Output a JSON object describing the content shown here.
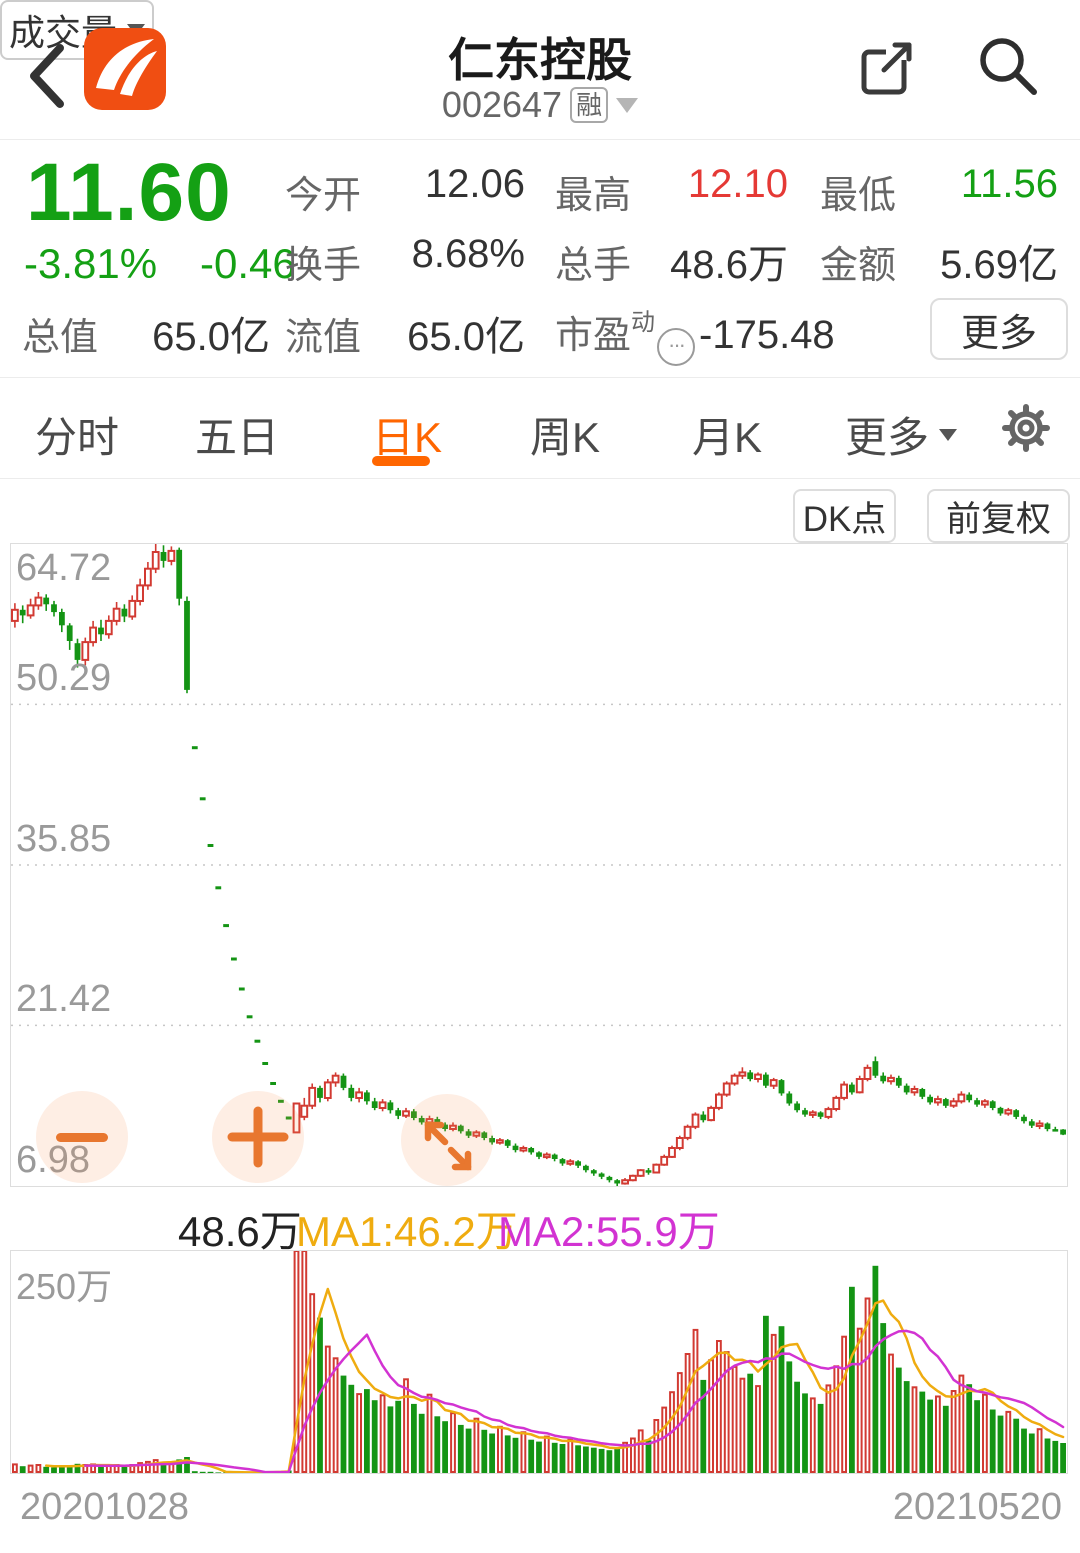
{
  "header": {
    "title": "仁东控股",
    "code": "002647",
    "margin_badge": "融"
  },
  "quote": {
    "price": "11.60",
    "change_pct": "-3.81%",
    "change_amt": "-0.46",
    "open_label": "今开",
    "open": "12.06",
    "high_label": "最高",
    "high": "12.10",
    "low_label": "最低",
    "low": "11.56",
    "turnover_label": "换手",
    "turnover": "8.68%",
    "volume_label": "总手",
    "volume": "48.6万",
    "amount_label": "金额",
    "amount": "5.69亿",
    "mktcap_label": "总值",
    "mktcap": "65.0亿",
    "float_label": "流值",
    "float_cap": "65.0亿",
    "pe_label": "市盈",
    "pe_sup": "动",
    "pe_value": "-175.48",
    "more_label": "更多"
  },
  "tabs": {
    "items": [
      "分时",
      "五日",
      "日K",
      "周K",
      "月K"
    ],
    "active": "日K",
    "more_label": "更多"
  },
  "chart_toolbar": {
    "dk_label": "DK点",
    "adjust_label": "前复权"
  },
  "volume_header": {
    "indicator_label": "成交量",
    "current": "48.6万",
    "ma1_label": "MA1:46.2万",
    "ma2_label": "MA2:55.9万"
  },
  "x_axis": {
    "start": "20201028",
    "end": "20210520"
  },
  "chart_data": {
    "type": "candlestick_with_volume",
    "symbol": "002647 仁东控股",
    "period": "日K",
    "y_axis_labels": [
      64.72,
      50.29,
      35.85,
      21.42,
      6.98
    ],
    "ylim": [
      6.98,
      64.72
    ],
    "volume_label": "250万",
    "volume_unit": "万",
    "volume_ylim_wan": [
      0,
      360
    ],
    "volume_ma_windows": [
      5,
      10
    ],
    "colors": {
      "up": "#d23a32",
      "down": "#149414",
      "ma1": "#efac10",
      "ma2": "#d233d2"
    },
    "x_range": [
      "20201028",
      "20210520"
    ],
    "candles_ohlcv": [
      [
        57.8,
        59.4,
        57.2,
        58.8,
        14
      ],
      [
        58.8,
        59.2,
        57.6,
        58.3,
        11
      ],
      [
        58.3,
        59.8,
        58.0,
        59.2,
        12
      ],
      [
        59.2,
        60.4,
        58.8,
        59.9,
        13
      ],
      [
        59.9,
        60.2,
        58.7,
        59.3,
        10
      ],
      [
        59.3,
        59.6,
        58.2,
        58.6,
        9
      ],
      [
        58.6,
        58.9,
        56.8,
        57.4,
        11
      ],
      [
        57.4,
        57.6,
        55.2,
        56.0,
        12
      ],
      [
        55.8,
        56.2,
        53.6,
        54.3,
        15
      ],
      [
        54.3,
        56.3,
        53.8,
        55.9,
        13
      ],
      [
        55.9,
        57.8,
        55.5,
        57.2,
        14
      ],
      [
        57.2,
        57.9,
        56.0,
        56.6,
        10
      ],
      [
        56.6,
        58.3,
        56.2,
        57.8,
        12
      ],
      [
        57.8,
        59.5,
        57.4,
        58.9,
        13
      ],
      [
        58.9,
        59.3,
        57.7,
        58.2,
        10
      ],
      [
        58.2,
        60.1,
        57.9,
        59.6,
        13
      ],
      [
        59.6,
        61.6,
        59.2,
        61.0,
        16
      ],
      [
        61.0,
        63.1,
        60.6,
        62.5,
        18
      ],
      [
        62.5,
        64.72,
        62.1,
        64.0,
        21
      ],
      [
        64.0,
        64.6,
        62.6,
        63.2,
        17
      ],
      [
        63.2,
        64.5,
        62.8,
        64.1,
        16
      ],
      [
        64.2,
        64.4,
        59.2,
        59.8,
        22
      ],
      [
        59.6,
        60.0,
        51.3,
        51.6,
        26
      ],
      [
        46.4,
        46.4,
        46.4,
        46.4,
        3
      ],
      [
        41.8,
        41.8,
        41.8,
        41.8,
        2
      ],
      [
        37.6,
        37.6,
        37.6,
        37.6,
        2
      ],
      [
        33.8,
        33.8,
        33.8,
        33.8,
        1
      ],
      [
        30.4,
        30.4,
        30.4,
        30.4,
        1
      ],
      [
        27.4,
        27.4,
        27.4,
        27.4,
        1
      ],
      [
        24.7,
        24.7,
        24.7,
        24.7,
        1
      ],
      [
        22.2,
        22.2,
        22.2,
        22.2,
        1
      ],
      [
        20.0,
        20.0,
        20.0,
        20.0,
        1
      ],
      [
        18.0,
        18.0,
        18.0,
        18.0,
        2
      ],
      [
        16.2,
        16.2,
        16.2,
        16.2,
        2
      ],
      [
        14.6,
        14.6,
        14.6,
        14.6,
        3
      ],
      [
        13.1,
        13.1,
        13.1,
        13.1,
        4
      ],
      [
        11.8,
        14.4,
        11.8,
        14.4,
        380
      ],
      [
        13.2,
        14.9,
        12.9,
        14.2,
        365
      ],
      [
        14.2,
        16.2,
        13.9,
        15.8,
        290
      ],
      [
        15.8,
        16.0,
        14.5,
        14.9,
        252
      ],
      [
        14.9,
        16.6,
        14.6,
        16.3,
        205
      ],
      [
        16.3,
        17.2,
        15.9,
        16.9,
        186
      ],
      [
        16.9,
        17.1,
        15.6,
        15.8,
        158
      ],
      [
        15.8,
        16.1,
        14.6,
        14.9,
        143
      ],
      [
        14.9,
        15.8,
        14.5,
        15.4,
        128
      ],
      [
        15.4,
        15.6,
        14.3,
        14.6,
        136
      ],
      [
        14.6,
        14.9,
        13.8,
        14.0,
        118
      ],
      [
        14.0,
        14.8,
        13.7,
        14.5,
        126
      ],
      [
        14.5,
        14.7,
        13.5,
        13.8,
        108
      ],
      [
        13.8,
        14.0,
        13.0,
        13.3,
        117
      ],
      [
        13.3,
        14.0,
        13.1,
        13.7,
        152
      ],
      [
        13.7,
        13.9,
        12.9,
        13.1,
        112
      ],
      [
        13.1,
        13.3,
        12.5,
        12.7,
        96
      ],
      [
        12.7,
        13.3,
        12.5,
        13.0,
        127
      ],
      [
        13.0,
        13.2,
        12.3,
        12.5,
        92
      ],
      [
        12.5,
        12.7,
        11.9,
        12.1,
        84
      ],
      [
        12.1,
        12.7,
        11.9,
        12.4,
        97
      ],
      [
        12.4,
        12.5,
        11.7,
        11.9,
        78
      ],
      [
        11.9,
        12.1,
        11.3,
        11.5,
        72
      ],
      [
        11.5,
        12.0,
        11.3,
        11.8,
        88
      ],
      [
        11.8,
        11.9,
        11.1,
        11.3,
        70
      ],
      [
        11.3,
        11.5,
        10.7,
        10.9,
        64
      ],
      [
        10.9,
        11.3,
        10.7,
        11.1,
        75
      ],
      [
        11.1,
        11.2,
        10.4,
        10.6,
        61
      ],
      [
        10.6,
        10.8,
        10.0,
        10.2,
        57
      ],
      [
        10.2,
        10.6,
        10.0,
        10.4,
        66
      ],
      [
        10.4,
        10.5,
        9.8,
        10.0,
        54
      ],
      [
        10.0,
        10.1,
        9.4,
        9.6,
        51
      ],
      [
        9.6,
        10.0,
        9.4,
        9.8,
        59
      ],
      [
        9.8,
        9.9,
        9.2,
        9.4,
        49
      ],
      [
        9.4,
        9.5,
        8.8,
        9.0,
        47
      ],
      [
        9.0,
        9.4,
        8.8,
        9.2,
        54
      ],
      [
        9.2,
        9.3,
        8.6,
        8.8,
        45
      ],
      [
        8.8,
        8.9,
        8.2,
        8.4,
        43
      ],
      [
        8.4,
        8.5,
        7.9,
        8.1,
        41
      ],
      [
        8.1,
        8.2,
        7.6,
        7.8,
        39
      ],
      [
        7.8,
        7.9,
        7.3,
        7.5,
        37
      ],
      [
        7.5,
        7.6,
        6.98,
        7.2,
        42
      ],
      [
        7.2,
        7.7,
        7.1,
        7.5,
        49
      ],
      [
        7.5,
        8.0,
        7.4,
        7.9,
        56
      ],
      [
        7.9,
        8.5,
        7.8,
        8.4,
        69
      ],
      [
        8.4,
        8.6,
        8.0,
        8.2,
        53
      ],
      [
        8.2,
        9.0,
        8.1,
        8.9,
        86
      ],
      [
        8.9,
        9.8,
        8.8,
        9.6,
        106
      ],
      [
        9.6,
        10.6,
        9.5,
        10.4,
        131
      ],
      [
        10.4,
        11.5,
        10.2,
        11.3,
        162
      ],
      [
        11.3,
        12.5,
        11.1,
        12.3,
        193
      ],
      [
        12.3,
        13.6,
        12.1,
        13.4,
        232
      ],
      [
        13.4,
        13.7,
        12.7,
        12.9,
        151
      ],
      [
        12.9,
        14.2,
        12.8,
        14.0,
        183
      ],
      [
        14.0,
        15.4,
        13.8,
        15.2,
        214
      ],
      [
        15.2,
        16.4,
        15.0,
        16.2,
        196
      ],
      [
        16.2,
        17.1,
        16.0,
        16.9,
        172
      ],
      [
        16.9,
        17.66,
        16.6,
        17.2,
        153
      ],
      [
        17.2,
        17.4,
        16.4,
        16.6,
        161
      ],
      [
        16.6,
        17.2,
        16.3,
        17.0,
        141
      ],
      [
        17.0,
        17.2,
        15.8,
        16.0,
        255
      ],
      [
        16.0,
        16.7,
        15.7,
        16.5,
        224
      ],
      [
        16.5,
        16.6,
        15.1,
        15.3,
        238
      ],
      [
        15.3,
        15.5,
        14.2,
        14.4,
        181
      ],
      [
        14.4,
        14.6,
        13.6,
        13.8,
        148
      ],
      [
        13.8,
        14.0,
        13.2,
        13.4,
        129
      ],
      [
        13.4,
        13.8,
        13.1,
        13.6,
        121
      ],
      [
        13.6,
        13.7,
        13.0,
        13.2,
        112
      ],
      [
        13.2,
        14.1,
        13.0,
        13.9,
        142
      ],
      [
        13.9,
        15.1,
        13.7,
        14.9,
        173
      ],
      [
        14.9,
        16.4,
        14.7,
        16.1,
        221
      ],
      [
        16.1,
        16.3,
        15.2,
        15.4,
        302
      ],
      [
        15.4,
        16.9,
        15.3,
        16.6,
        234
      ],
      [
        16.6,
        17.9,
        16.4,
        17.6,
        283
      ],
      [
        18.2,
        18.63,
        16.7,
        16.9,
        336
      ],
      [
        16.9,
        17.2,
        16.2,
        16.4,
        243
      ],
      [
        16.4,
        17.0,
        16.1,
        16.7,
        192
      ],
      [
        16.7,
        16.9,
        15.8,
        16.0,
        171
      ],
      [
        16.0,
        16.2,
        15.2,
        15.4,
        149
      ],
      [
        15.4,
        16.0,
        15.1,
        15.7,
        139
      ],
      [
        15.7,
        15.8,
        14.8,
        15.0,
        132
      ],
      [
        15.0,
        15.2,
        14.3,
        14.5,
        119
      ],
      [
        14.5,
        15.1,
        14.2,
        14.8,
        124
      ],
      [
        14.8,
        14.9,
        14.0,
        14.2,
        109
      ],
      [
        14.2,
        14.9,
        14.0,
        14.6,
        133
      ],
      [
        14.6,
        15.5,
        14.4,
        15.2,
        158
      ],
      [
        15.2,
        15.4,
        14.5,
        14.7,
        144
      ],
      [
        14.7,
        14.9,
        14.1,
        14.3,
        118
      ],
      [
        14.3,
        14.8,
        14.0,
        14.6,
        127
      ],
      [
        14.6,
        14.7,
        13.8,
        14.0,
        103
      ],
      [
        14.0,
        14.1,
        13.3,
        13.5,
        93
      ],
      [
        13.5,
        14.0,
        13.3,
        13.8,
        99
      ],
      [
        13.8,
        13.9,
        13.0,
        13.2,
        88
      ],
      [
        13.2,
        13.4,
        12.6,
        12.8,
        72
      ],
      [
        12.8,
        13.0,
        12.2,
        12.4,
        64
      ],
      [
        12.4,
        12.9,
        12.1,
        12.6,
        71
      ],
      [
        12.6,
        12.7,
        11.9,
        12.1,
        56
      ],
      [
        12.1,
        12.3,
        11.9,
        12.06,
        52
      ],
      [
        12.06,
        12.1,
        11.56,
        11.6,
        48.6
      ]
    ]
  }
}
